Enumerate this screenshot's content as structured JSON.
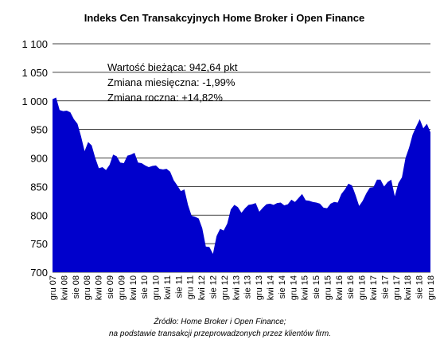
{
  "chart_data": {
    "type": "area",
    "title": "Indeks Cen Transakcyjnych Home Broker i Open Finance",
    "xlabel": "",
    "ylabel": "",
    "ylim": [
      700,
      1100
    ],
    "yticks": [
      "1 100",
      "1 050",
      "1 000",
      "950",
      "900",
      "850",
      "800",
      "750",
      "700"
    ],
    "ytick_values": [
      1100,
      1050,
      1000,
      950,
      900,
      850,
      800,
      750,
      700
    ],
    "xticks": [
      "gru 07",
      "kwi 08",
      "sie 08",
      "gru 08",
      "kwi 09",
      "sie 09",
      "gru 09",
      "kwi 10",
      "sie 10",
      "gru 10",
      "kwi 11",
      "sie 11",
      "gru 11",
      "kwi 12",
      "sie 12",
      "gru 12",
      "kwi 13",
      "sie 13",
      "gru 13",
      "kwi 14",
      "sie 14",
      "gru 14",
      "kwi 15",
      "sie 15",
      "gru 15",
      "kwi 16",
      "sie 16",
      "gru 16",
      "kwi 17",
      "sie 17",
      "gru 17",
      "kwi 18",
      "sie 18",
      "gru 18"
    ],
    "grid": "horizontal",
    "fill_color": "#0000cc",
    "grid_color": "#000000",
    "annotation": [
      "Wartość bieżąca: 942,64 pkt",
      "Zmiana miesięczna: -1,99%",
      "Zmiana roczna: +14,82%"
    ],
    "values": [
      1003,
      1006,
      984,
      982,
      983,
      980,
      968,
      960,
      938,
      912,
      928,
      922,
      900,
      882,
      884,
      879,
      888,
      906,
      903,
      892,
      891,
      904,
      906,
      909,
      892,
      891,
      887,
      884,
      886,
      887,
      881,
      880,
      881,
      876,
      861,
      852,
      842,
      845,
      818,
      799,
      797,
      794,
      777,
      745,
      744,
      732,
      763,
      776,
      773,
      785,
      810,
      818,
      814,
      804,
      812,
      818,
      819,
      821,
      806,
      813,
      819,
      820,
      818,
      821,
      822,
      817,
      819,
      827,
      823,
      830,
      837,
      826,
      825,
      823,
      822,
      820,
      813,
      812,
      820,
      823,
      822,
      837,
      845,
      855,
      852,
      835,
      816,
      825,
      838,
      848,
      849,
      862,
      862,
      850,
      858,
      862,
      833,
      856,
      866,
      900,
      918,
      941,
      955,
      968,
      952,
      960,
      945
    ]
  },
  "source": {
    "line1": "Źródło: Home Broker i Open Finance;",
    "line2": "na podstawie transakcji przeprowadzonych przez klientów firm."
  }
}
